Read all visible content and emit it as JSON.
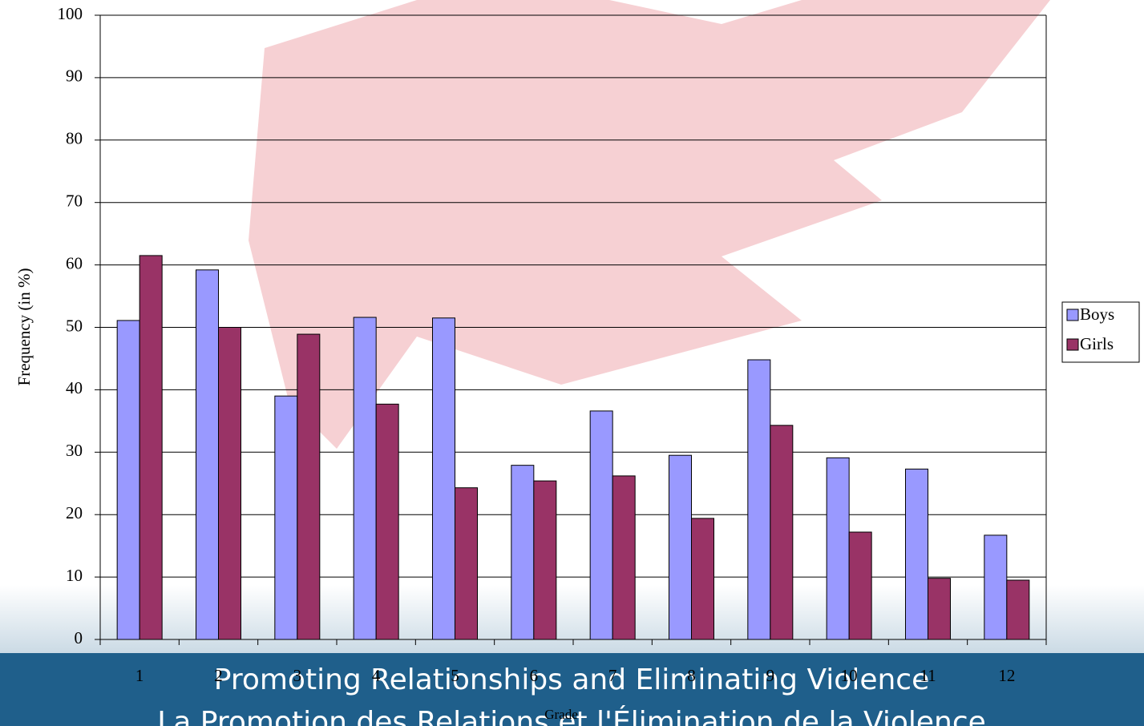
{
  "chart_data": {
    "type": "bar",
    "y_label": "Frequency (in %)",
    "x_label": "Grade",
    "categories": [
      "1",
      "2",
      "3",
      "4",
      "5",
      "6",
      "7",
      "8",
      "9",
      "10",
      "11",
      "12"
    ],
    "series": [
      {
        "name": "Boys",
        "color": "#9999ff",
        "values": [
          51.1,
          59.2,
          39.0,
          51.6,
          51.5,
          27.9,
          36.6,
          29.5,
          44.8,
          29.1,
          27.3,
          16.7
        ]
      },
      {
        "name": "Girls",
        "color": "#993366",
        "values": [
          61.5,
          50.0,
          48.9,
          37.7,
          24.3,
          25.4,
          26.2,
          19.4,
          34.3,
          17.2,
          9.8,
          9.5
        ]
      }
    ],
    "ylim": [
      0,
      100
    ],
    "yticks": [
      0,
      10,
      20,
      30,
      40,
      50,
      60,
      70,
      80,
      90,
      100
    ],
    "grid": true,
    "legend": "right"
  },
  "banner": {
    "lines": [
      "Promoting Relationships and Eliminating Violence",
      "La Promotion des Relations et l'Élimination de la Violence"
    ]
  }
}
